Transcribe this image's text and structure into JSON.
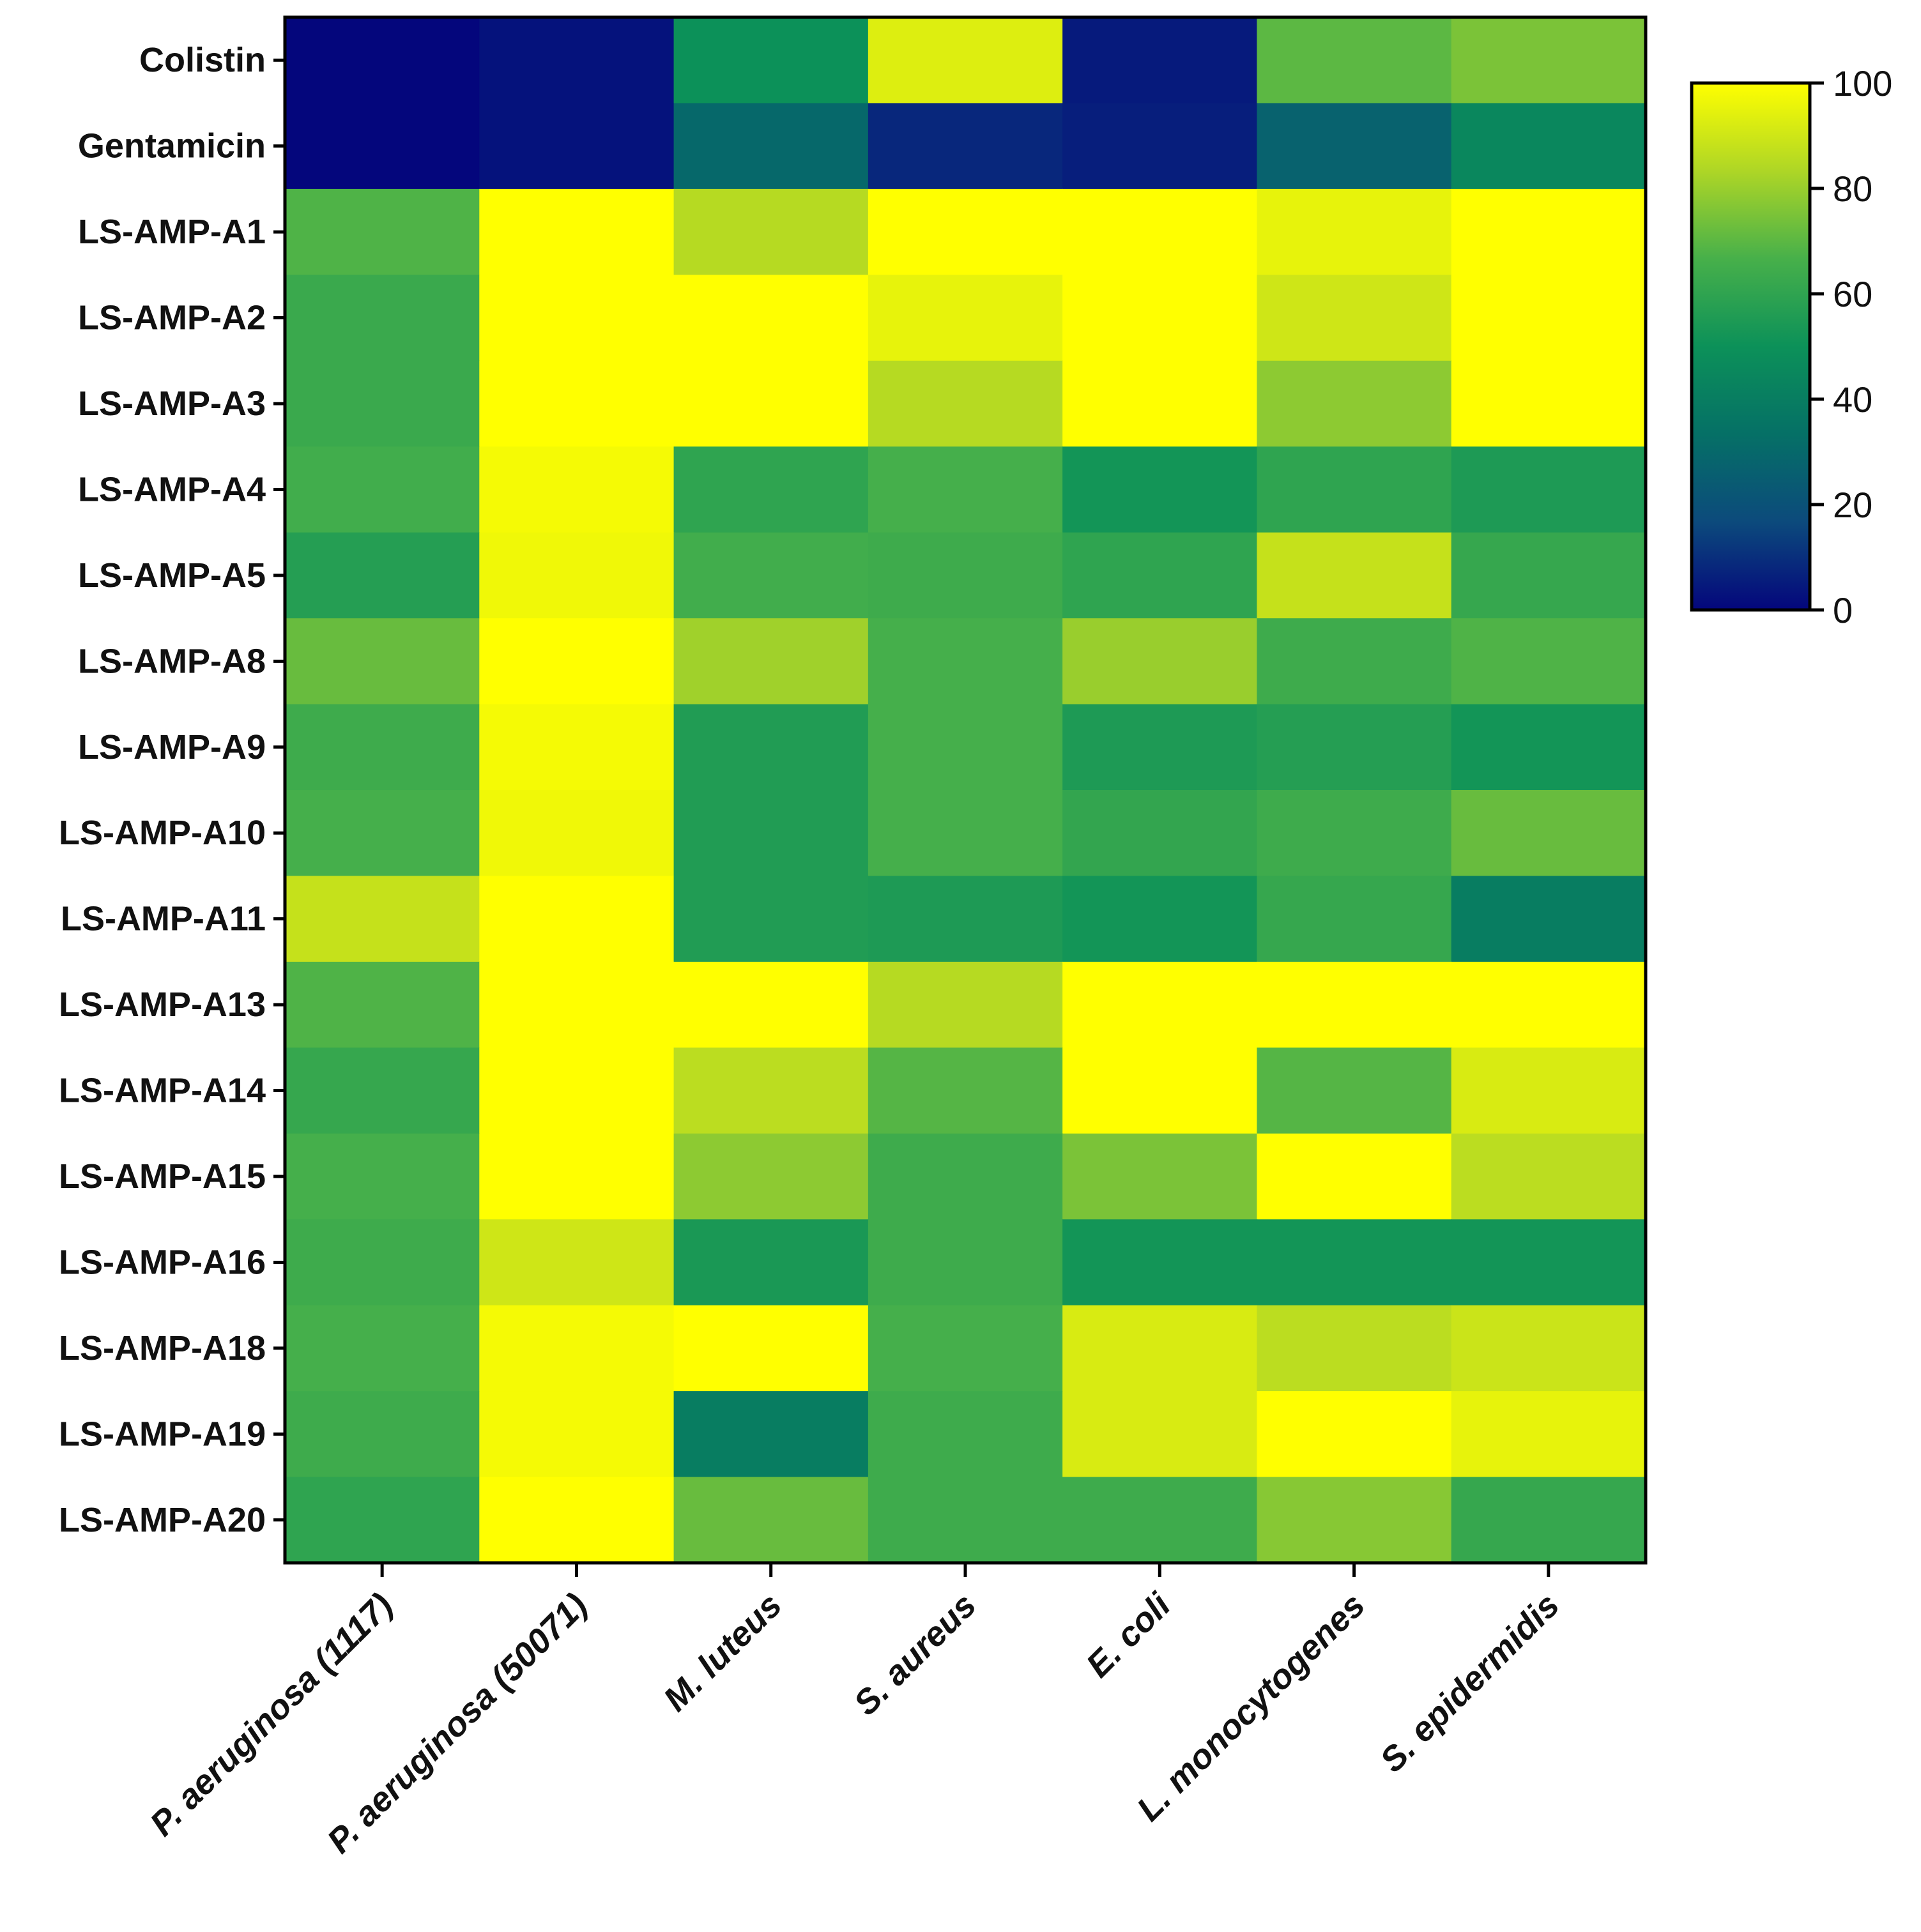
{
  "chart_data": {
    "type": "heatmap",
    "title": "",
    "xlabel": "",
    "ylabel": "",
    "rows": [
      "Colistin",
      "Gentamicin",
      "LS-AMP-A1",
      "LS-AMP-A2",
      "LS-AMP-A3",
      "LS-AMP-A4",
      "LS-AMP-A5",
      "LS-AMP-A8",
      "LS-AMP-A9",
      "LS-AMP-A10",
      "LS-AMP-A11",
      "LS-AMP-A13",
      "LS-AMP-A14",
      "LS-AMP-A15",
      "LS-AMP-A16",
      "LS-AMP-A18",
      "LS-AMP-A19",
      "LS-AMP-A20"
    ],
    "columns": [
      "P. aeruginosa (1117)",
      "P. aeruginosa (50071)",
      "M. luteus",
      "S. aureus",
      "E. coli",
      "L. monocytogenes",
      "S. epidermidis"
    ],
    "values": [
      [
        0,
        3,
        50,
        93,
        5,
        70,
        75
      ],
      [
        0,
        3,
        30,
        8,
        6,
        27,
        45
      ],
      [
        68,
        100,
        85,
        100,
        100,
        95,
        100
      ],
      [
        63,
        100,
        100,
        95,
        100,
        90,
        100
      ],
      [
        63,
        100,
        100,
        85,
        100,
        78,
        100
      ],
      [
        65,
        98,
        60,
        66,
        52,
        60,
        55
      ],
      [
        57,
        97,
        65,
        64,
        60,
        88,
        62
      ],
      [
        72,
        100,
        81,
        66,
        80,
        64,
        68
      ],
      [
        64,
        98,
        56,
        66,
        55,
        57,
        52
      ],
      [
        66,
        97,
        56,
        66,
        61,
        64,
        72
      ],
      [
        88,
        100,
        56,
        55,
        52,
        62,
        40
      ],
      [
        68,
        100,
        100,
        85,
        100,
        100,
        100
      ],
      [
        62,
        100,
        86,
        69,
        100,
        69,
        92
      ],
      [
        66,
        100,
        78,
        64,
        75,
        100,
        86
      ],
      [
        64,
        90,
        54,
        64,
        52,
        52,
        52
      ],
      [
        66,
        98,
        100,
        66,
        92,
        86,
        89
      ],
      [
        64,
        98,
        40,
        64,
        92,
        100,
        95
      ],
      [
        60,
        100,
        72,
        64,
        64,
        77,
        62
      ]
    ],
    "colorbar": {
      "min": 0,
      "max": 100,
      "ticks": [
        0,
        20,
        40,
        60,
        80,
        100
      ],
      "colormap": "viridis-like",
      "stops": [
        "#04067c",
        "#0c4a7c",
        "#057066",
        "#0c9159",
        "#47b04a",
        "#aed626",
        "#ffff00"
      ]
    }
  }
}
